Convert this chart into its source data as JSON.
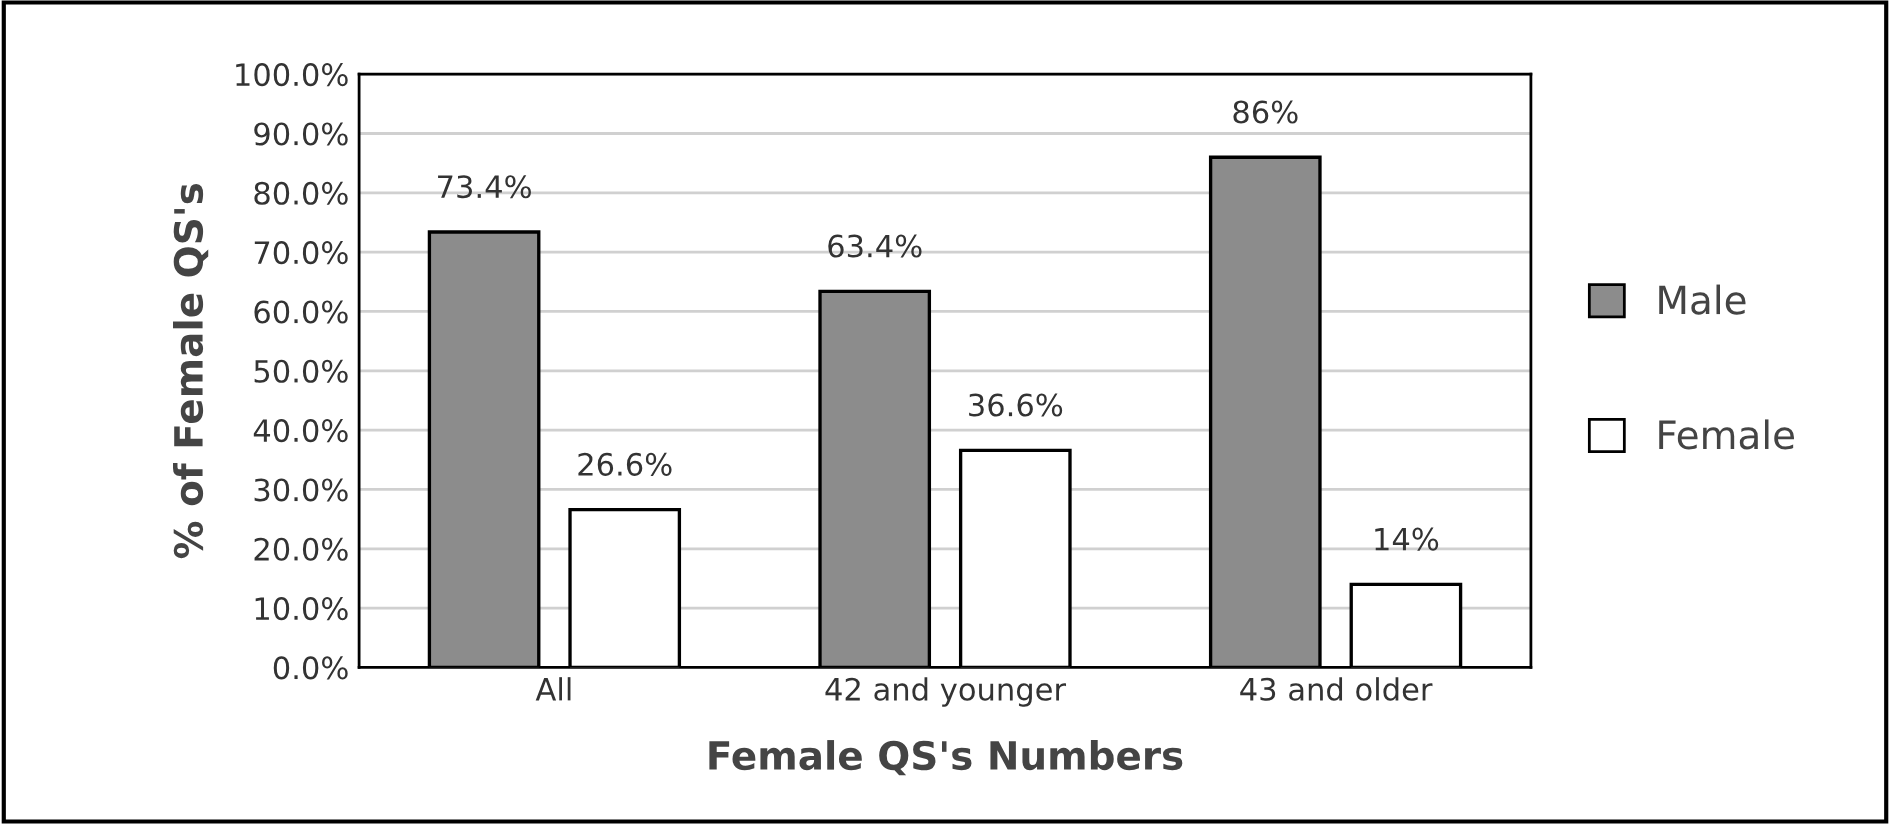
{
  "chart_data": {
    "type": "bar",
    "xlabel": "Female QS's Numbers",
    "ylabel": "% of Female QS's",
    "categories": [
      "All",
      "42 and younger",
      "43 and older"
    ],
    "series": [
      {
        "name": "Male",
        "color": "#8c8c8c",
        "values": [
          73.4,
          63.4,
          86
        ],
        "value_labels": [
          "73.4%",
          "63.4%",
          "86%"
        ]
      },
      {
        "name": "Female",
        "color": "#ffffff",
        "values": [
          26.6,
          36.6,
          14
        ],
        "value_labels": [
          "26.6%",
          "36.6%",
          "14%"
        ]
      }
    ],
    "ylim": [
      0,
      100
    ],
    "yticks": [
      {
        "value": 0,
        "label": "0.0%"
      },
      {
        "value": 10,
        "label": "10.0%"
      },
      {
        "value": 20,
        "label": "20.0%"
      },
      {
        "value": 30,
        "label": "30.0%"
      },
      {
        "value": 40,
        "label": "40.0%"
      },
      {
        "value": 50,
        "label": "50.0%"
      },
      {
        "value": 60,
        "label": "60.0%"
      },
      {
        "value": 70,
        "label": "70.0%"
      },
      {
        "value": 80,
        "label": "80.0%"
      },
      {
        "value": 90,
        "label": "90.0%"
      },
      {
        "value": 100,
        "label": "100.0%"
      }
    ],
    "grid": "y",
    "legend": "right"
  }
}
